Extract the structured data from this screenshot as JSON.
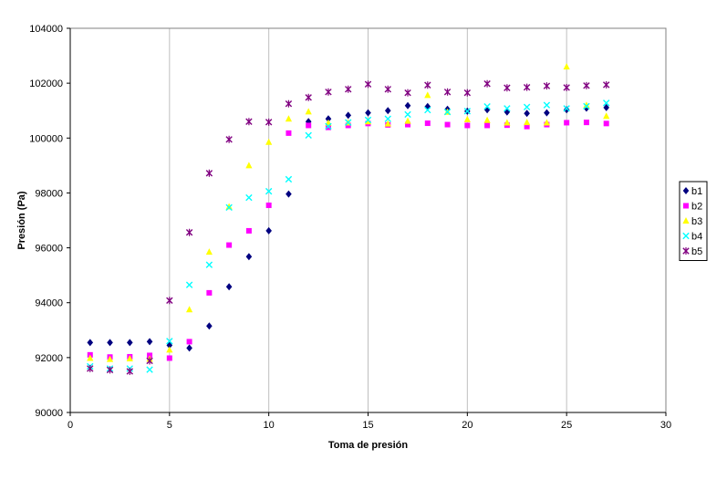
{
  "chart_data": {
    "type": "scatter",
    "xlabel": "Toma de presión",
    "ylabel": "Presión (Pa)",
    "xlim": [
      0,
      30
    ],
    "ylim": [
      90000,
      104000
    ],
    "x_ticks": [
      "0",
      "5",
      "10",
      "15",
      "20",
      "25",
      "30"
    ],
    "y_ticks": [
      "90000",
      "92000",
      "94000",
      "96000",
      "98000",
      "100000",
      "102000",
      "104000"
    ],
    "grid": "vertical",
    "legend_position": "right",
    "series": [
      {
        "name": "b1",
        "color": "#000080",
        "marker": "diamond",
        "x": [
          1,
          2,
          3,
          4,
          5,
          6,
          7,
          8,
          9,
          10,
          11,
          12,
          13,
          14,
          15,
          16,
          17,
          18,
          19,
          20,
          21,
          22,
          23,
          24,
          25,
          26,
          27
        ],
        "y": [
          92550,
          92550,
          92550,
          92580,
          92450,
          92350,
          93150,
          94580,
          95680,
          96620,
          97960,
          100600,
          100700,
          100830,
          100920,
          101000,
          101180,
          101150,
          101050,
          100980,
          101030,
          100950,
          100900,
          100920,
          101030,
          101090,
          101110
        ]
      },
      {
        "name": "b2",
        "color": "#ff00ff",
        "marker": "square",
        "x": [
          1,
          2,
          3,
          4,
          5,
          6,
          7,
          8,
          9,
          10,
          11,
          12,
          13,
          14,
          15,
          16,
          17,
          18,
          19,
          20,
          21,
          22,
          23,
          24,
          25,
          26,
          27
        ],
        "y": [
          92100,
          92020,
          92030,
          92080,
          91980,
          92580,
          94360,
          96100,
          96620,
          97550,
          100180,
          100460,
          100390,
          100460,
          100530,
          100480,
          100490,
          100540,
          100490,
          100460,
          100460,
          100470,
          100420,
          100490,
          100560,
          100570,
          100530
        ]
      },
      {
        "name": "b3",
        "color": "#ffff00",
        "marker": "triangle",
        "x": [
          1,
          2,
          3,
          4,
          5,
          6,
          7,
          8,
          9,
          10,
          11,
          12,
          13,
          14,
          15,
          16,
          17,
          18,
          19,
          20,
          21,
          22,
          23,
          24,
          25,
          26,
          27
        ],
        "y": [
          91980,
          91940,
          91960,
          91950,
          92280,
          93750,
          95850,
          97500,
          99000,
          99850,
          100700,
          100960,
          100550,
          100560,
          100600,
          100520,
          100620,
          101560,
          100950,
          100680,
          100650,
          100560,
          100570,
          100560,
          102600,
          101200,
          100800
        ]
      },
      {
        "name": "b4",
        "color": "#00ffff",
        "marker": "x",
        "x": [
          1,
          2,
          3,
          4,
          5,
          6,
          7,
          8,
          9,
          10,
          11,
          12,
          13,
          14,
          15,
          16,
          17,
          18,
          19,
          20,
          21,
          22,
          23,
          24,
          25,
          26,
          27
        ],
        "y": [
          91680,
          91600,
          91600,
          91560,
          92600,
          94650,
          95380,
          97470,
          97830,
          98060,
          98500,
          100100,
          100430,
          100570,
          100660,
          100700,
          100860,
          101020,
          100950,
          100980,
          101150,
          101080,
          101130,
          101200,
          101080,
          101160,
          101280
        ]
      },
      {
        "name": "b5",
        "color": "#800080",
        "marker": "star",
        "x": [
          1,
          2,
          3,
          4,
          5,
          6,
          7,
          8,
          9,
          10,
          11,
          12,
          13,
          14,
          15,
          16,
          17,
          18,
          19,
          20,
          21,
          22,
          23,
          24,
          25,
          26,
          27
        ],
        "y": [
          91600,
          91550,
          91500,
          91880,
          94080,
          96560,
          98720,
          99950,
          100600,
          100580,
          101250,
          101480,
          101680,
          101780,
          101960,
          101780,
          101650,
          101930,
          101680,
          101650,
          101980,
          101830,
          101850,
          101900,
          101840,
          101910,
          101940
        ]
      }
    ]
  }
}
